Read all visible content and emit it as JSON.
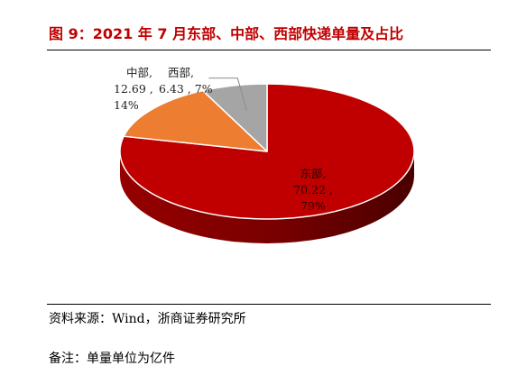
{
  "figure": {
    "title": "图 9：2021 年 7 月东部、中部、西部快递单量及占比",
    "source": "资料来源：Wind，浙商证券研究所",
    "note": "备注：单量单位为亿件"
  },
  "chart_data": {
    "type": "pie",
    "style": "3d",
    "title": "",
    "categories": [
      "东部",
      "中部",
      "西部"
    ],
    "values": [
      70.22,
      12.69,
      6.43
    ],
    "percentages": [
      79,
      14,
      7
    ],
    "colors": [
      "#c00000",
      "#ed7d31",
      "#a5a5a5"
    ],
    "data_labels": [
      [
        "东部,",
        "70.22 ,",
        "79%"
      ],
      [
        "中部,",
        "12.69 ,",
        "14%"
      ],
      [
        "西部,",
        "6.43 , 7%"
      ]
    ],
    "legend": "none"
  }
}
